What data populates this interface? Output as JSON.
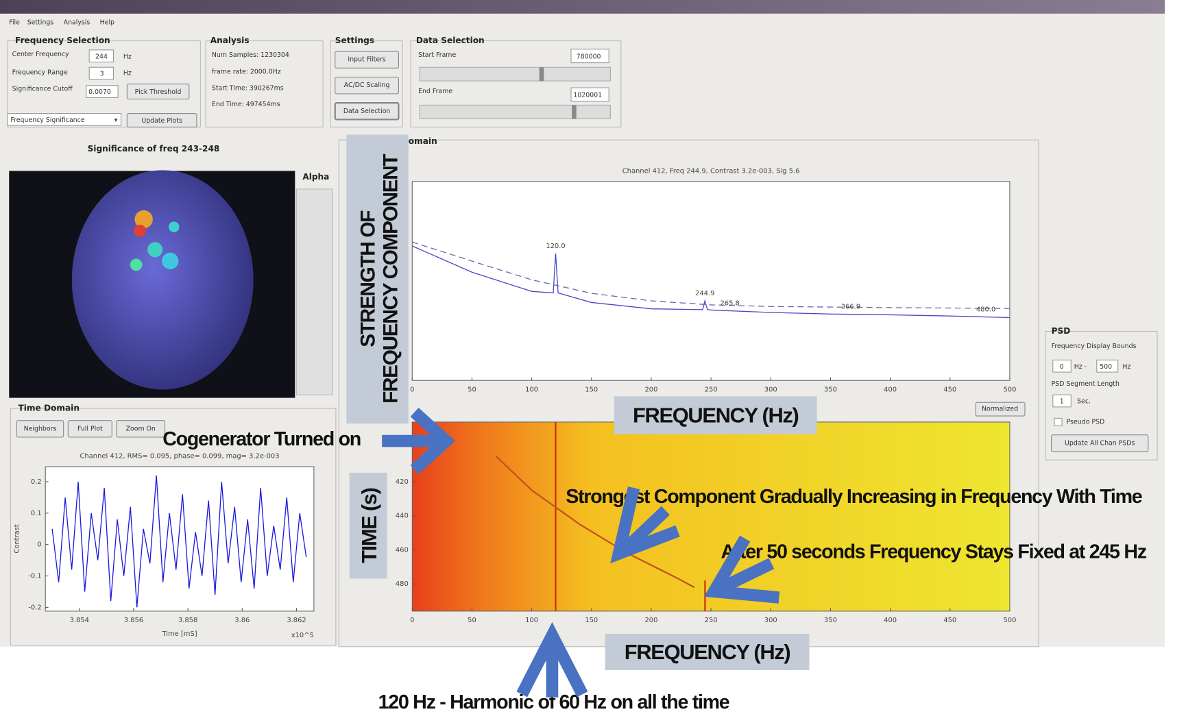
{
  "menu": [
    "File",
    "Settings",
    "Analysis",
    "Help"
  ],
  "frequency_selection": {
    "title": "Frequency Selection",
    "center_label": "Center Frequency",
    "center_value": "244",
    "center_unit": "Hz",
    "range_label": "Frequency Range",
    "range_value": "3",
    "range_unit": "Hz",
    "cutoff_label": "Significance Cutoff",
    "cutoff_value": "0.0070",
    "pick_button": "Pick Threshold",
    "dropdown": "Frequency Significance",
    "update_button": "Update Plots"
  },
  "analysis": {
    "title": "Analysis",
    "lines": [
      "Num Samples: 1230304",
      "frame rate: 2000.0Hz",
      "Start Time: 390267ms",
      "End Time: 497454ms"
    ]
  },
  "settings": {
    "title": "Settings",
    "buttons": [
      "Input Filters",
      "AC/DC Scaling",
      "Data Selection"
    ]
  },
  "data_selection": {
    "title": "Data Selection",
    "start_label": "Start Frame",
    "start_value": "780000",
    "end_label": "End Frame",
    "end_value": "1020001"
  },
  "significance": {
    "title": "Significance of freq 243-248",
    "alpha_label": "Alpha"
  },
  "time_domain": {
    "title": "Time Domain",
    "buttons": [
      "Neighbors",
      "Full Plot",
      "Zoom On"
    ]
  },
  "frequency_domain": {
    "title": "omain",
    "normalized_button": "Normalized"
  },
  "psd_panel": {
    "title": "PSD",
    "bounds_label": "Frequency Display Bounds",
    "low_value": "0",
    "low_unit": "Hz -",
    "high_value": "500",
    "high_unit": "Hz",
    "segment_label": "PSD Segment Length",
    "segment_value": "1",
    "segment_unit": "Sec.",
    "pseudo_label": "Pseudo PSD",
    "update_button": "Update All Chan PSDs"
  },
  "annotations": {
    "strength": [
      "STRENGTH OF",
      "FREQUENCY COMPONENT"
    ],
    "frequency_top": "FREQUENCY (Hz)",
    "cogenerator": "Cogenerator Turned on",
    "time": "TIME (s)",
    "strongest": "Strongest Component Gradually Increasing in Frequency With Time",
    "after50": "After 50 seconds Frequency Stays Fixed at 245 Hz",
    "frequency_bottom": "FREQUENCY (Hz)",
    "harmonic": "120 Hz - Harmonic of 60 Hz on all the time"
  },
  "chart_data": [
    {
      "type": "line",
      "title": "Channel 412, Freq 244.9, Contrast 3.2e-003, Sig 5.6",
      "xlim": [
        0,
        500
      ],
      "xticks": [
        0,
        50,
        100,
        150,
        200,
        250,
        300,
        350,
        400,
        450,
        500
      ],
      "ylim": [
        0,
        5
      ],
      "series": [
        {
          "color": "#4848c8",
          "line_style": "solid",
          "x": [
            0,
            50,
            100,
            118,
            120,
            122,
            150,
            200,
            243,
            244.9,
            247,
            250,
            300,
            350,
            400,
            450,
            500
          ],
          "values": [
            3.38,
            2.72,
            2.24,
            2.2,
            3.19,
            2.2,
            1.96,
            1.8,
            1.78,
            2.0,
            1.78,
            1.77,
            1.71,
            1.67,
            1.65,
            1.62,
            1.58
          ]
        },
        {
          "color": "#6a6aa8",
          "line_style": "dashed",
          "x": [
            0,
            50,
            100,
            150,
            200,
            250,
            300,
            400,
            500
          ],
          "values": [
            3.48,
            3.0,
            2.53,
            2.19,
            2.0,
            1.9,
            1.86,
            1.83,
            1.81
          ]
        }
      ],
      "peaks": [
        {
          "x": 120,
          "label": "120.0"
        },
        {
          "x": 244.9,
          "label": "244.9"
        },
        {
          "x": 265.8,
          "label": "265.8"
        },
        {
          "x": 366.9,
          "label": "366.9"
        },
        {
          "x": 480,
          "label": "480.0"
        }
      ]
    },
    {
      "type": "line",
      "title": "Channel 412, RMS= 0.095, phase= 0.099, mag= 3.2e-003",
      "xlabel": "Time [mS]",
      "ylabel": "Contrast",
      "x_exponent_label": "x10^5",
      "xlim": [
        3.85275,
        3.86264
      ],
      "xticks": [
        3.854,
        3.856,
        3.858,
        3.86,
        3.862
      ],
      "ylim": [
        -0.212,
        0.248
      ],
      "yticks": [
        0.2,
        0.1,
        0,
        -0.1,
        -0.2
      ],
      "series": [
        {
          "color": "#1a1ae0",
          "line_style": "solid",
          "x": [
            3.853,
            3.85324,
            3.85348,
            3.85372,
            3.85396,
            3.8542,
            3.85444,
            3.85468,
            3.85492,
            3.85516,
            3.8554,
            3.85564,
            3.85588,
            3.85612,
            3.85636,
            3.8566,
            3.85684,
            3.85708,
            3.85732,
            3.85756,
            3.8578,
            3.85804,
            3.85828,
            3.85852,
            3.85876,
            3.859,
            3.85924,
            3.85948,
            3.85972,
            3.85996,
            3.8602,
            3.86044,
            3.86068,
            3.86092,
            3.86116,
            3.8614,
            3.86164,
            3.86188,
            3.86212,
            3.86236
          ],
          "values": [
            0.05,
            -0.12,
            0.15,
            -0.08,
            0.2,
            -0.15,
            0.1,
            -0.05,
            0.18,
            -0.18,
            0.08,
            -0.1,
            0.12,
            -0.2,
            0.05,
            -0.06,
            0.22,
            -0.12,
            0.1,
            -0.08,
            0.16,
            -0.14,
            0.04,
            -0.1,
            0.14,
            -0.16,
            0.2,
            -0.06,
            0.12,
            -0.12,
            0.08,
            -0.14,
            0.18,
            -0.1,
            0.06,
            -0.08,
            0.15,
            -0.12,
            0.1,
            -0.04
          ]
        }
      ]
    },
    {
      "type": "spectrogram",
      "xlim": [
        0,
        500
      ],
      "xticks": [
        0,
        50,
        100,
        150,
        200,
        250,
        300,
        350,
        400,
        450,
        500
      ],
      "ylim": [
        385,
        496
      ],
      "yticks": [
        420,
        440,
        460,
        480
      ],
      "y_axis_reversed": true,
      "series": [
        {
          "color": "#c83010",
          "x": [
            120,
            120
          ],
          "values": [
            385,
            496
          ]
        },
        {
          "color": "#c05020",
          "x": [
            70,
            100,
            140,
            180,
            220,
            236
          ],
          "values": [
            405,
            425,
            445,
            462,
            476,
            482
          ]
        },
        {
          "color": "#c83010",
          "x": [
            245,
            245
          ],
          "values": [
            478,
            496
          ]
        }
      ]
    }
  ]
}
